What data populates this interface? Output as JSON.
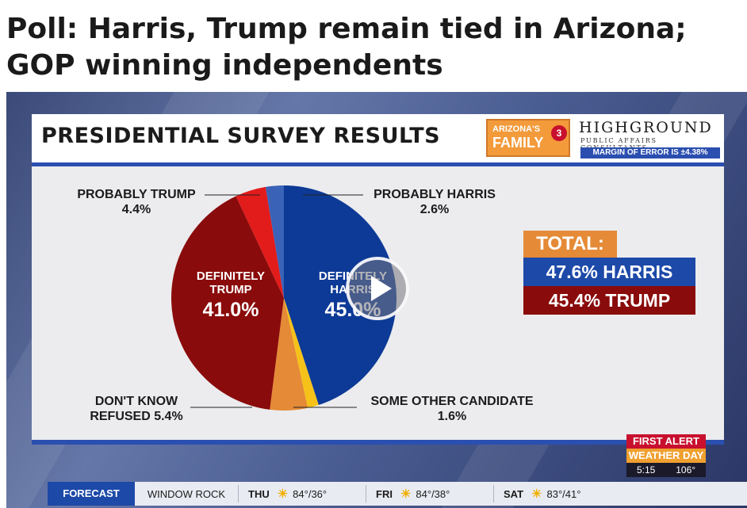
{
  "headline": "Poll: Harris, Trump remain tied in Arizona; GOP winning independents",
  "board": {
    "title": "PRESIDENTIAL SURVEY RESULTS",
    "logo_az_line1": "ARIZONA'S",
    "logo_az_line2": "FAMILY",
    "logo_channel": "3",
    "pollster_name": "HIGHGROUND",
    "pollster_sub": "PUBLIC AFFAIRS CONSULTANTS",
    "margin_of_error": "MARGIN OF ERROR IS ±4.38%"
  },
  "pie_labels": {
    "probably_trump_name": "PROBABLY TRUMP",
    "probably_trump_value": "4.4%",
    "probably_harris_name": "PROBABLY HARRIS",
    "probably_harris_value": "2.6%",
    "definitely_trump_l1": "DEFINITELY",
    "definitely_trump_l2": "TRUMP",
    "definitely_trump_value": "41.0%",
    "definitely_harris_l1": "DEFINITELY",
    "definitely_harris_l2": "HARRIS",
    "definitely_harris_value": "45.0%",
    "dont_know_l1": "DON'T KNOW",
    "dont_know_l2": "REFUSED 5.4%",
    "other_name": "SOME OTHER CANDIDATE",
    "other_value": "1.6%"
  },
  "chart_data": {
    "type": "pie",
    "series": [
      {
        "name": "Definitely Harris",
        "value": 45.0,
        "color": "#0d3a96"
      },
      {
        "name": "Some Other Candidate",
        "value": 1.6,
        "color": "#f6c21a"
      },
      {
        "name": "Don't Know / Refused",
        "value": 5.4,
        "color": "#e58a36"
      },
      {
        "name": "Definitely Trump",
        "value": 41.0,
        "color": "#8a0b0b"
      },
      {
        "name": "Probably Trump",
        "value": 4.4,
        "color": "#e21b1b"
      },
      {
        "name": "Probably Harris",
        "value": 2.6,
        "color": "#3a63b8"
      }
    ]
  },
  "totals": {
    "label": "TOTAL:",
    "harris": "47.6% HARRIS",
    "trump": "45.4% TRUMP"
  },
  "first_alert": {
    "line1": "FIRST ALERT",
    "line2": "WEATHER DAY",
    "time": "5:15",
    "temp": "106°"
  },
  "ticker": {
    "forecast": "FORECAST",
    "location": "WINDOW ROCK",
    "days": [
      {
        "day": "THU",
        "temps": "84°/36°"
      },
      {
        "day": "FRI",
        "temps": "84°/38°"
      },
      {
        "day": "SAT",
        "temps": "83°/41°"
      }
    ]
  },
  "icons": {
    "play": "play-icon",
    "sun": "sun-icon"
  }
}
